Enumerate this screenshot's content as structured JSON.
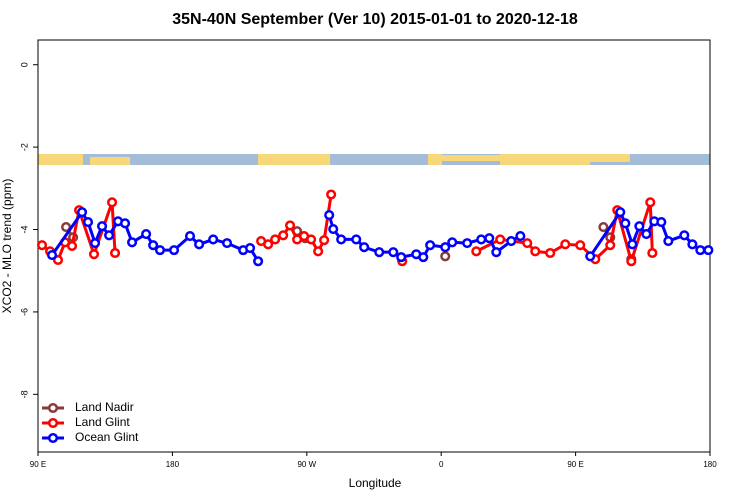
{
  "chart_data": {
    "type": "line",
    "title": "35N-40N September (Ver 10)   2015-01-01 to 2020-12-18",
    "x_label": "Longitude",
    "y_label": "XCO2 - MLO trend (ppm)",
    "xlim": [
      90,
      540
    ],
    "ylim": [
      -9.4,
      0.6
    ],
    "xticks": [
      {
        "value": 90,
        "label": "90 E"
      },
      {
        "value": 180,
        "label": "180"
      },
      {
        "value": 270,
        "label": "90 W"
      },
      {
        "value": 360,
        "label": "0"
      },
      {
        "value": 450,
        "label": "90 E"
      },
      {
        "value": 540,
        "label": "180"
      }
    ],
    "yticks": [
      0,
      -2,
      -4,
      -6,
      -8
    ],
    "legend": "bottom-left",
    "series": [
      {
        "name": "Land Nadir",
        "color": "#8b3a3a",
        "x": [
          108.8,
          113.5,
          null,
          263.5,
          268.9,
          null,
          362.7,
          null,
          468.6,
          473.2,
          null,
          487.3
        ],
        "values": [
          -3.94,
          -4.19,
          null,
          -4.04,
          -4.21,
          null,
          -4.65,
          null,
          -3.94,
          -4.19,
          null,
          -4.72
        ]
      },
      {
        "name": "Land Glint",
        "color": "#ff0000",
        "x": [
          92.7,
          98.1,
          103.4,
          108.1,
          112.8,
          117.5,
          127.5,
          139.6,
          141.6,
          null,
          239.4,
          244.1,
          248.8,
          254.2,
          258.8,
          263.5,
          268.2,
          272.9,
          277.6,
          281.6,
          286.3,
          null,
          333.9,
          null,
          383.5,
          399.5,
          417.6,
          423.0,
          433.0,
          443.1,
          453.1,
          463.2,
          473.2,
          477.9,
          487.3,
          500.0,
          501.4
        ],
        "values": [
          -4.38,
          -4.53,
          -4.74,
          -4.31,
          -4.4,
          -3.53,
          -4.6,
          -3.34,
          -4.57,
          null,
          -4.28,
          -4.36,
          -4.24,
          -4.14,
          -3.9,
          -4.24,
          -4.16,
          -4.24,
          -4.53,
          -4.26,
          -3.15,
          null,
          -4.77,
          null,
          -4.53,
          -4.24,
          -4.33,
          -4.53,
          -4.57,
          -4.36,
          -4.38,
          -4.72,
          -4.38,
          -3.53,
          -4.77,
          -3.34,
          -4.57
        ]
      },
      {
        "name": "Ocean Glint",
        "color": "#0000ff",
        "x": [
          99.4,
          119.5,
          123.5,
          128.2,
          132.9,
          137.6,
          143.6,
          148.3,
          153.0,
          162.4,
          167.1,
          171.7,
          181.1,
          191.8,
          197.9,
          207.3,
          216.6,
          227.4,
          232.0,
          237.4,
          null,
          285.0,
          287.7,
          293.0,
          303.1,
          308.4,
          318.5,
          327.9,
          333.2,
          343.3,
          348.0,
          352.6,
          362.7,
          367.4,
          377.4,
          386.8,
          392.2,
          396.9,
          406.9,
          413.0,
          null,
          459.8,
          479.9,
          483.3,
          488.0,
          492.7,
          497.4,
          502.7,
          507.4,
          512.1,
          522.8,
          528.2,
          533.5,
          538.9
        ],
        "values": [
          -4.62,
          -3.58,
          -3.82,
          -4.33,
          -3.92,
          -4.14,
          -3.8,
          -3.85,
          -4.31,
          -4.11,
          -4.38,
          -4.5,
          -4.5,
          -4.16,
          -4.36,
          -4.24,
          -4.33,
          -4.5,
          -4.45,
          -4.77,
          null,
          -3.65,
          -3.99,
          -4.24,
          -4.24,
          -4.43,
          -4.55,
          -4.55,
          -4.67,
          -4.6,
          -4.67,
          -4.38,
          -4.43,
          -4.31,
          -4.33,
          -4.24,
          -4.21,
          -4.55,
          -4.28,
          -4.16,
          null,
          -4.65,
          -3.58,
          -3.85,
          -4.36,
          -3.92,
          -4.11,
          -3.8,
          -3.82,
          -4.28,
          -4.14,
          -4.36,
          -4.5,
          -4.5
        ]
      }
    ]
  }
}
